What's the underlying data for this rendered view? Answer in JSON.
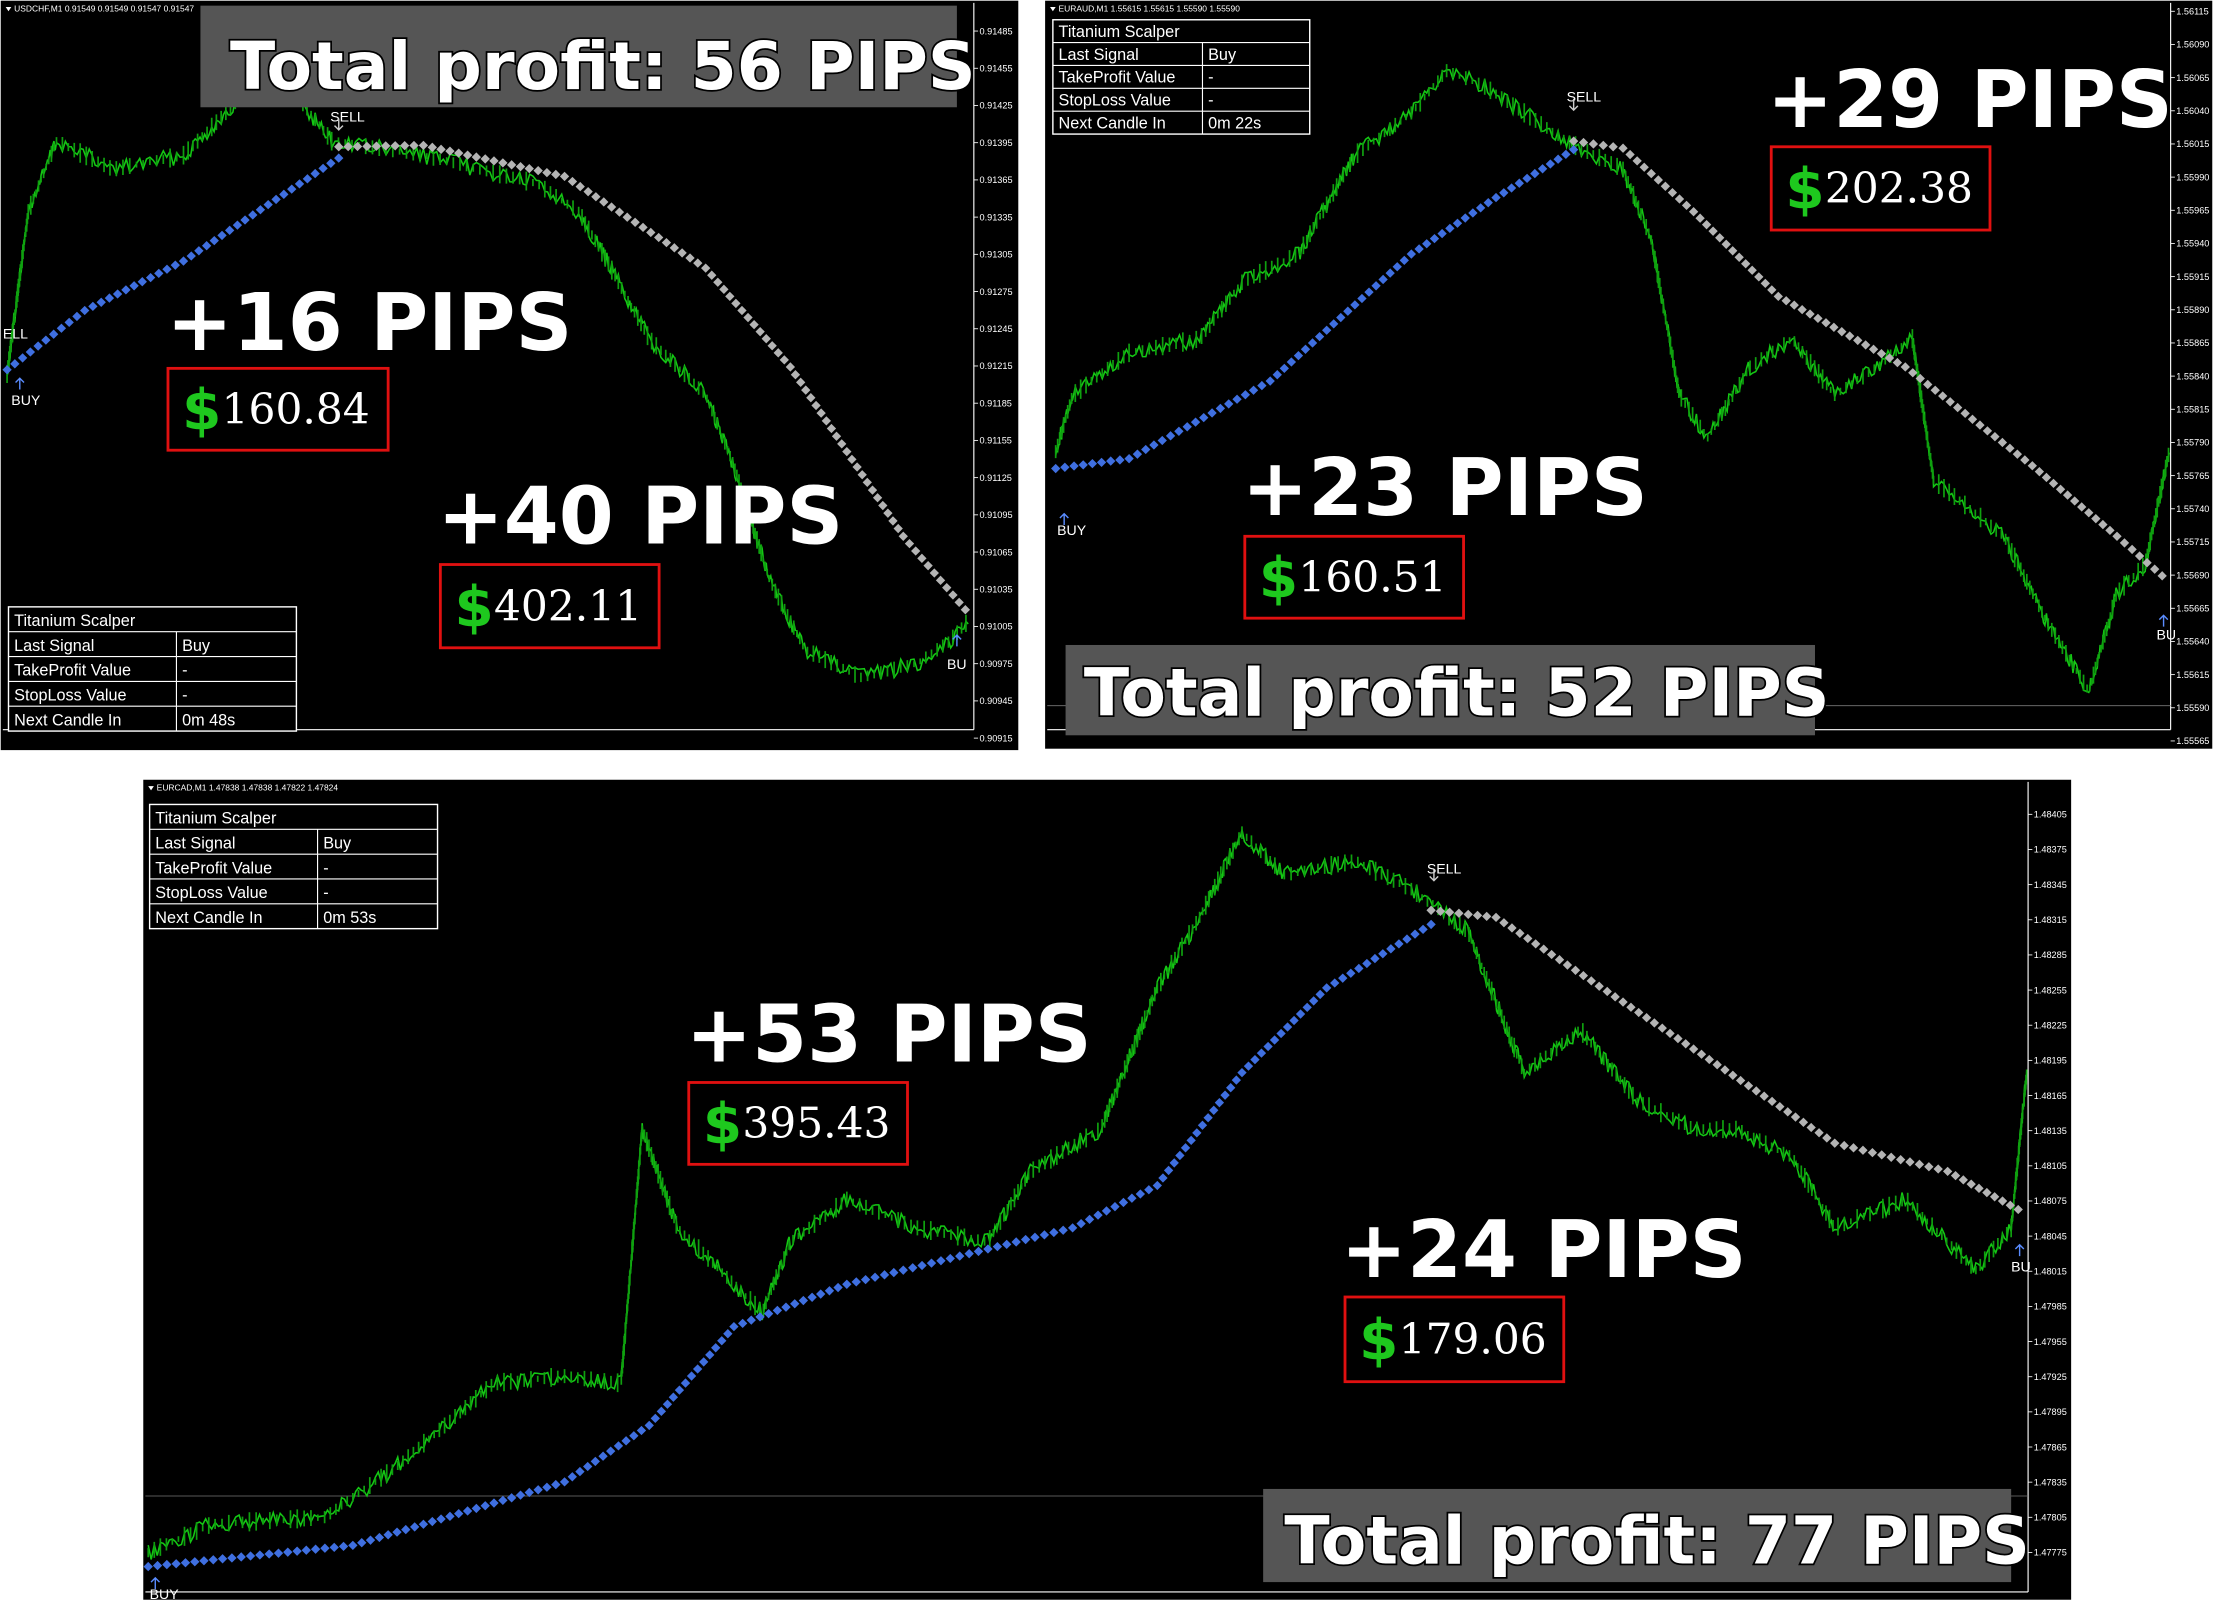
{
  "panels": [
    {
      "header": "USDCHF,M1  0.91549 0.91549 0.91547 0.91547",
      "price_labels": [
        "0.91485",
        "0.91455",
        "0.91425",
        "0.91395",
        "0.91365",
        "0.91335",
        "0.91305",
        "0.91275",
        "0.91245",
        "0.91215",
        "0.91185",
        "0.91155",
        "0.91125",
        "0.91095",
        "0.91065",
        "0.91035",
        "0.91005",
        "0.90975",
        "0.90945",
        "0.90915"
      ],
      "info_table": {
        "title": "Titanium Scalper",
        "rows": [
          [
            "Last Signal",
            "Buy"
          ],
          [
            "TakeProfit Value",
            "-"
          ],
          [
            "StopLoss Value",
            "-"
          ],
          [
            "Next Candle In",
            "0m 48s"
          ]
        ]
      },
      "signals": [
        "ELL",
        "BUY",
        "SELL",
        "BU"
      ],
      "trades": [
        {
          "pips": "+16 PIPS",
          "currency": "$",
          "amount": "160.84"
        },
        {
          "pips": "+40 PIPS",
          "currency": "$",
          "amount": "402.11"
        }
      ],
      "total": "Total profit: 56 PIPS"
    },
    {
      "header": "EURAUD,M1  1.55615 1.55615 1.55590 1.55590",
      "price_labels": [
        "1.56115",
        "1.56090",
        "1.56065",
        "1.56040",
        "1.56015",
        "1.55990",
        "1.55965",
        "1.55940",
        "1.55915",
        "1.55890",
        "1.55865",
        "1.55840",
        "1.55815",
        "1.55790",
        "1.55765",
        "1.55740",
        "1.55715",
        "1.55690",
        "1.55665",
        "1.55640",
        "1.55615",
        "1.55590",
        "1.55565"
      ],
      "info_table": {
        "title": "Titanium Scalper",
        "rows": [
          [
            "Last Signal",
            "Buy"
          ],
          [
            "TakeProfit Value",
            "-"
          ],
          [
            "StopLoss Value",
            "-"
          ],
          [
            "Next Candle In",
            "0m 22s"
          ]
        ]
      },
      "signals": [
        "BUY",
        "SELL",
        "BU"
      ],
      "trades": [
        {
          "pips": "+29 PIPS",
          "currency": "$",
          "amount": "202.38"
        },
        {
          "pips": "+23 PIPS",
          "currency": "$",
          "amount": "160.51"
        }
      ],
      "total": "Total profit: 52 PIPS"
    },
    {
      "header": "EURCAD,M1  1.47838 1.47838 1.47822 1.47824",
      "price_labels": [
        "1.48405",
        "1.48375",
        "1.48345",
        "1.48315",
        "1.48285",
        "1.48255",
        "1.48225",
        "1.48195",
        "1.48165",
        "1.48135",
        "1.48105",
        "1.48075",
        "1.48045",
        "1.48015",
        "1.47985",
        "1.47955",
        "1.47925",
        "1.47895",
        "1.47865",
        "1.47835",
        "1.47805",
        "1.47775"
      ],
      "info_table": {
        "title": "Titanium Scalper",
        "rows": [
          [
            "Last Signal",
            "Buy"
          ],
          [
            "TakeProfit Value",
            "-"
          ],
          [
            "StopLoss Value",
            "-"
          ],
          [
            "Next Candle In",
            "0m 53s"
          ]
        ]
      },
      "signals": [
        "SELL",
        "BUY",
        "BU"
      ],
      "trades": [
        {
          "pips": "+53 PIPS",
          "currency": "$",
          "amount": "395.43"
        },
        {
          "pips": "+24 PIPS",
          "currency": "$",
          "amount": "179.06"
        }
      ],
      "total": "Total profit: 77 PIPS"
    }
  ]
}
